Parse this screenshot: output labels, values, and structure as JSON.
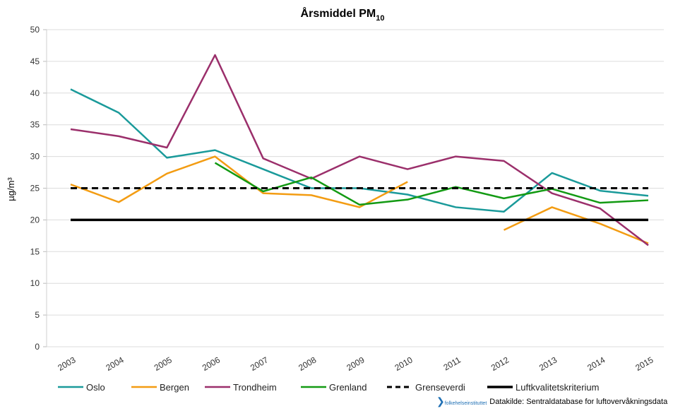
{
  "chart_data": {
    "type": "line",
    "title": "Årsmiddel PM",
    "title_subscript": "10",
    "ylabel": "µg/m³",
    "xlabel": "",
    "ylim": [
      0,
      50
    ],
    "yticks": [
      0,
      5,
      10,
      15,
      20,
      25,
      30,
      35,
      40,
      45,
      50
    ],
    "categories": [
      "2003",
      "2004",
      "2005",
      "2006",
      "2007",
      "2008",
      "2009",
      "2010",
      "2011",
      "2012",
      "2013",
      "2014",
      "2015"
    ],
    "grid": true,
    "legend_position": "bottom",
    "series": [
      {
        "name": "Oslo",
        "color": "#1a9a9a",
        "style": "solid",
        "values": [
          40.6,
          36.9,
          29.8,
          31.0,
          28.0,
          25.0,
          25.0,
          24.0,
          22.0,
          21.3,
          27.4,
          24.6,
          23.8
        ]
      },
      {
        "name": "Bergen",
        "color": "#f39c12",
        "style": "solid",
        "values": [
          25.6,
          22.8,
          27.3,
          30.0,
          24.2,
          23.9,
          22.0,
          26.0,
          null,
          18.4,
          22.0,
          19.4,
          16.3
        ]
      },
      {
        "name": "Trondheim",
        "color": "#9b2f6b",
        "style": "solid",
        "values": [
          34.3,
          33.2,
          31.4,
          46.0,
          29.7,
          26.5,
          30.0,
          28.0,
          30.0,
          29.3,
          24.2,
          21.8,
          16.0
        ]
      },
      {
        "name": "Grenland",
        "color": "#139a13",
        "style": "solid",
        "values": [
          null,
          null,
          null,
          29.0,
          24.5,
          26.7,
          22.4,
          23.2,
          25.2,
          23.4,
          24.9,
          22.7,
          23.1
        ]
      },
      {
        "name": "Grenseverdi",
        "color": "#000000",
        "style": "dashed",
        "values": [
          25,
          25,
          25,
          25,
          25,
          25,
          25,
          25,
          25,
          25,
          25,
          25,
          25
        ]
      },
      {
        "name": "Luftkvalitetskriterium",
        "color": "#000000",
        "style": "solid-thick",
        "values": [
          20,
          20,
          20,
          20,
          20,
          20,
          20,
          20,
          20,
          20,
          20,
          20,
          20
        ]
      }
    ]
  },
  "footer": {
    "logo_text": "folkehelseinstituttet",
    "source": "Datakilde: Sentraldatabase for luftovervåkningsdata"
  }
}
